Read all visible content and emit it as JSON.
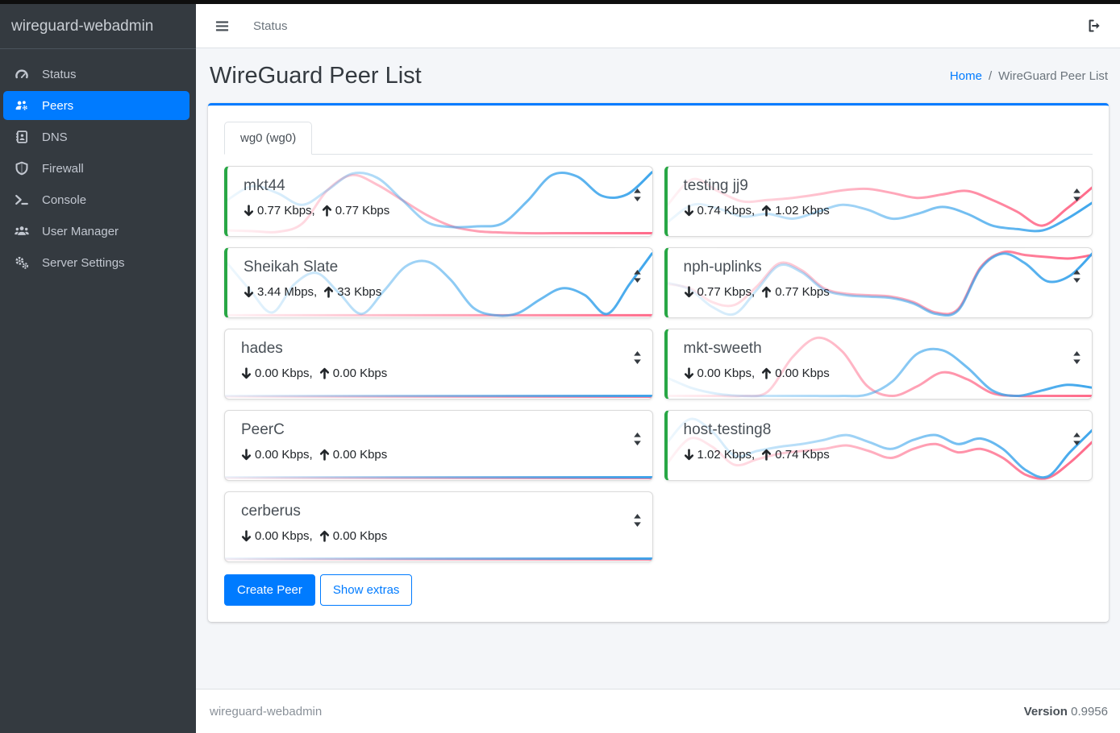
{
  "colors": {
    "accent": "#007bff",
    "online_green": "#28a745",
    "spark_blue": "#36a2eb",
    "spark_pink": "#ff6384",
    "sidebar_bg": "#343a40",
    "content_bg": "#f4f6f9"
  },
  "sidebar": {
    "brand": "wireguard-webadmin",
    "items": [
      {
        "label": "Status",
        "icon": "tachometer-icon",
        "active": false
      },
      {
        "label": "Peers",
        "icon": "users-gear-icon",
        "active": true
      },
      {
        "label": "DNS",
        "icon": "address-book-icon",
        "active": false
      },
      {
        "label": "Firewall",
        "icon": "shield-icon",
        "active": false
      },
      {
        "label": "Console",
        "icon": "terminal-icon",
        "active": false
      },
      {
        "label": "User Manager",
        "icon": "users-icon",
        "active": false
      },
      {
        "label": "Server Settings",
        "icon": "gears-icon",
        "active": false
      }
    ]
  },
  "topbar": {
    "nav_link": "Status"
  },
  "page": {
    "title": "WireGuard Peer List",
    "breadcrumb_home": "Home",
    "breadcrumb_sep": "/",
    "breadcrumb_current": "WireGuard Peer List"
  },
  "tabs": [
    {
      "label": "wg0 (wg0)",
      "active": true
    }
  ],
  "actions": {
    "create_peer": "Create Peer",
    "show_extras": "Show extras"
  },
  "footer": {
    "brand": "wireguard-webadmin",
    "version_label": "Version",
    "version_value": "0.9956"
  },
  "peers": {
    "left": [
      {
        "name": "mkt44",
        "down": "0.77 Kbps,",
        "up": "0.77 Kbps",
        "online": true,
        "spark_down": [
          48,
          28,
          38,
          55,
          34,
          10,
          16,
          48,
          80,
          87,
          86,
          82,
          50,
          12,
          14,
          42,
          40,
          8
        ],
        "spark_up": [
          92,
          93,
          94,
          82,
          34,
          12,
          26,
          48,
          70,
          86,
          93,
          95,
          96,
          96,
          96,
          96,
          96,
          96
        ]
      },
      {
        "name": "Sheikah Slate",
        "down": "3.44 Mbps,",
        "up": "33 Kbps",
        "online": true,
        "spark_down": [
          22,
          60,
          93,
          52,
          36,
          65,
          95,
          62,
          26,
          20,
          46,
          86,
          97,
          94,
          74,
          58,
          68,
          95,
          52,
          8
        ],
        "spark_up": [
          97,
          97,
          97,
          97,
          97,
          97,
          97,
          97,
          97,
          97,
          97,
          97,
          97,
          97,
          97,
          97,
          97,
          97,
          97,
          97
        ]
      },
      {
        "name": "hades",
        "down": "0.00 Kbps,",
        "up": "0.00 Kbps",
        "online": false,
        "spark_down": [
          96,
          96,
          96,
          96,
          96,
          96,
          96,
          96,
          96,
          96
        ],
        "spark_up": [
          97,
          97,
          97,
          97,
          97,
          97,
          97,
          97,
          97,
          97
        ]
      },
      {
        "name": "PeerC",
        "down": "0.00 Kbps,",
        "up": "0.00 Kbps",
        "online": false,
        "spark_down": [
          96,
          96,
          96,
          96,
          96,
          96,
          96,
          96,
          96,
          96
        ],
        "spark_up": [
          97,
          97,
          97,
          97,
          97,
          97,
          97,
          97,
          97,
          97
        ]
      },
      {
        "name": "cerberus",
        "down": "0.00 Kbps,",
        "up": "0.00 Kbps",
        "online": false,
        "spark_down": [
          96,
          96,
          96,
          96,
          96,
          96,
          96,
          96,
          96,
          96
        ],
        "spark_up": [
          97,
          97,
          97,
          97,
          97,
          97,
          97,
          97,
          97,
          97
        ]
      }
    ],
    "right": [
      {
        "name": "testing jj9",
        "down": "0.74 Kbps,",
        "up": "1.02 Kbps",
        "online": true,
        "spark_down": [
          80,
          55,
          60,
          72,
          68,
          75,
          65,
          55,
          62,
          75,
          68,
          58,
          68,
          85,
          90,
          92,
          75,
          52
        ],
        "spark_up": [
          55,
          18,
          35,
          50,
          48,
          45,
          40,
          34,
          32,
          38,
          45,
          40,
          35,
          48,
          65,
          85,
          60,
          30
        ]
      },
      {
        "name": "nph-uplinks",
        "down": "0.77 Kbps,",
        "up": "0.77 Kbps",
        "online": true,
        "spark_down": [
          50,
          60,
          85,
          95,
          60,
          25,
          35,
          60,
          68,
          70,
          72,
          80,
          95,
          90,
          30,
          8,
          22,
          48,
          40,
          8
        ],
        "spark_up": [
          52,
          58,
          78,
          82,
          55,
          22,
          32,
          58,
          66,
          68,
          70,
          78,
          93,
          88,
          28,
          6,
          10,
          13,
          15,
          10
        ]
      },
      {
        "name": "mkt-sweeth",
        "down": "0.00 Kbps,",
        "up": "0.00 Kbps",
        "online": true,
        "spark_down": [
          70,
          85,
          93,
          96,
          96,
          96,
          96,
          96,
          94,
          75,
          35,
          30,
          55,
          88,
          96,
          88,
          80,
          84
        ],
        "spark_up": [
          96,
          96,
          96,
          96,
          90,
          40,
          12,
          32,
          82,
          96,
          82,
          62,
          72,
          92,
          96,
          96,
          96,
          96
        ]
      },
      {
        "name": "host-testing8",
        "down": "1.02 Kbps,",
        "up": "0.74 Kbps",
        "online": true,
        "spark_down": [
          45,
          12,
          30,
          65,
          58,
          52,
          48,
          42,
          35,
          45,
          55,
          42,
          35,
          48,
          40,
          55,
          85,
          95,
          60,
          28
        ],
        "spark_up": [
          75,
          40,
          52,
          78,
          70,
          62,
          58,
          55,
          50,
          58,
          68,
          55,
          48,
          60,
          55,
          68,
          92,
          97,
          75,
          45
        ]
      }
    ]
  }
}
